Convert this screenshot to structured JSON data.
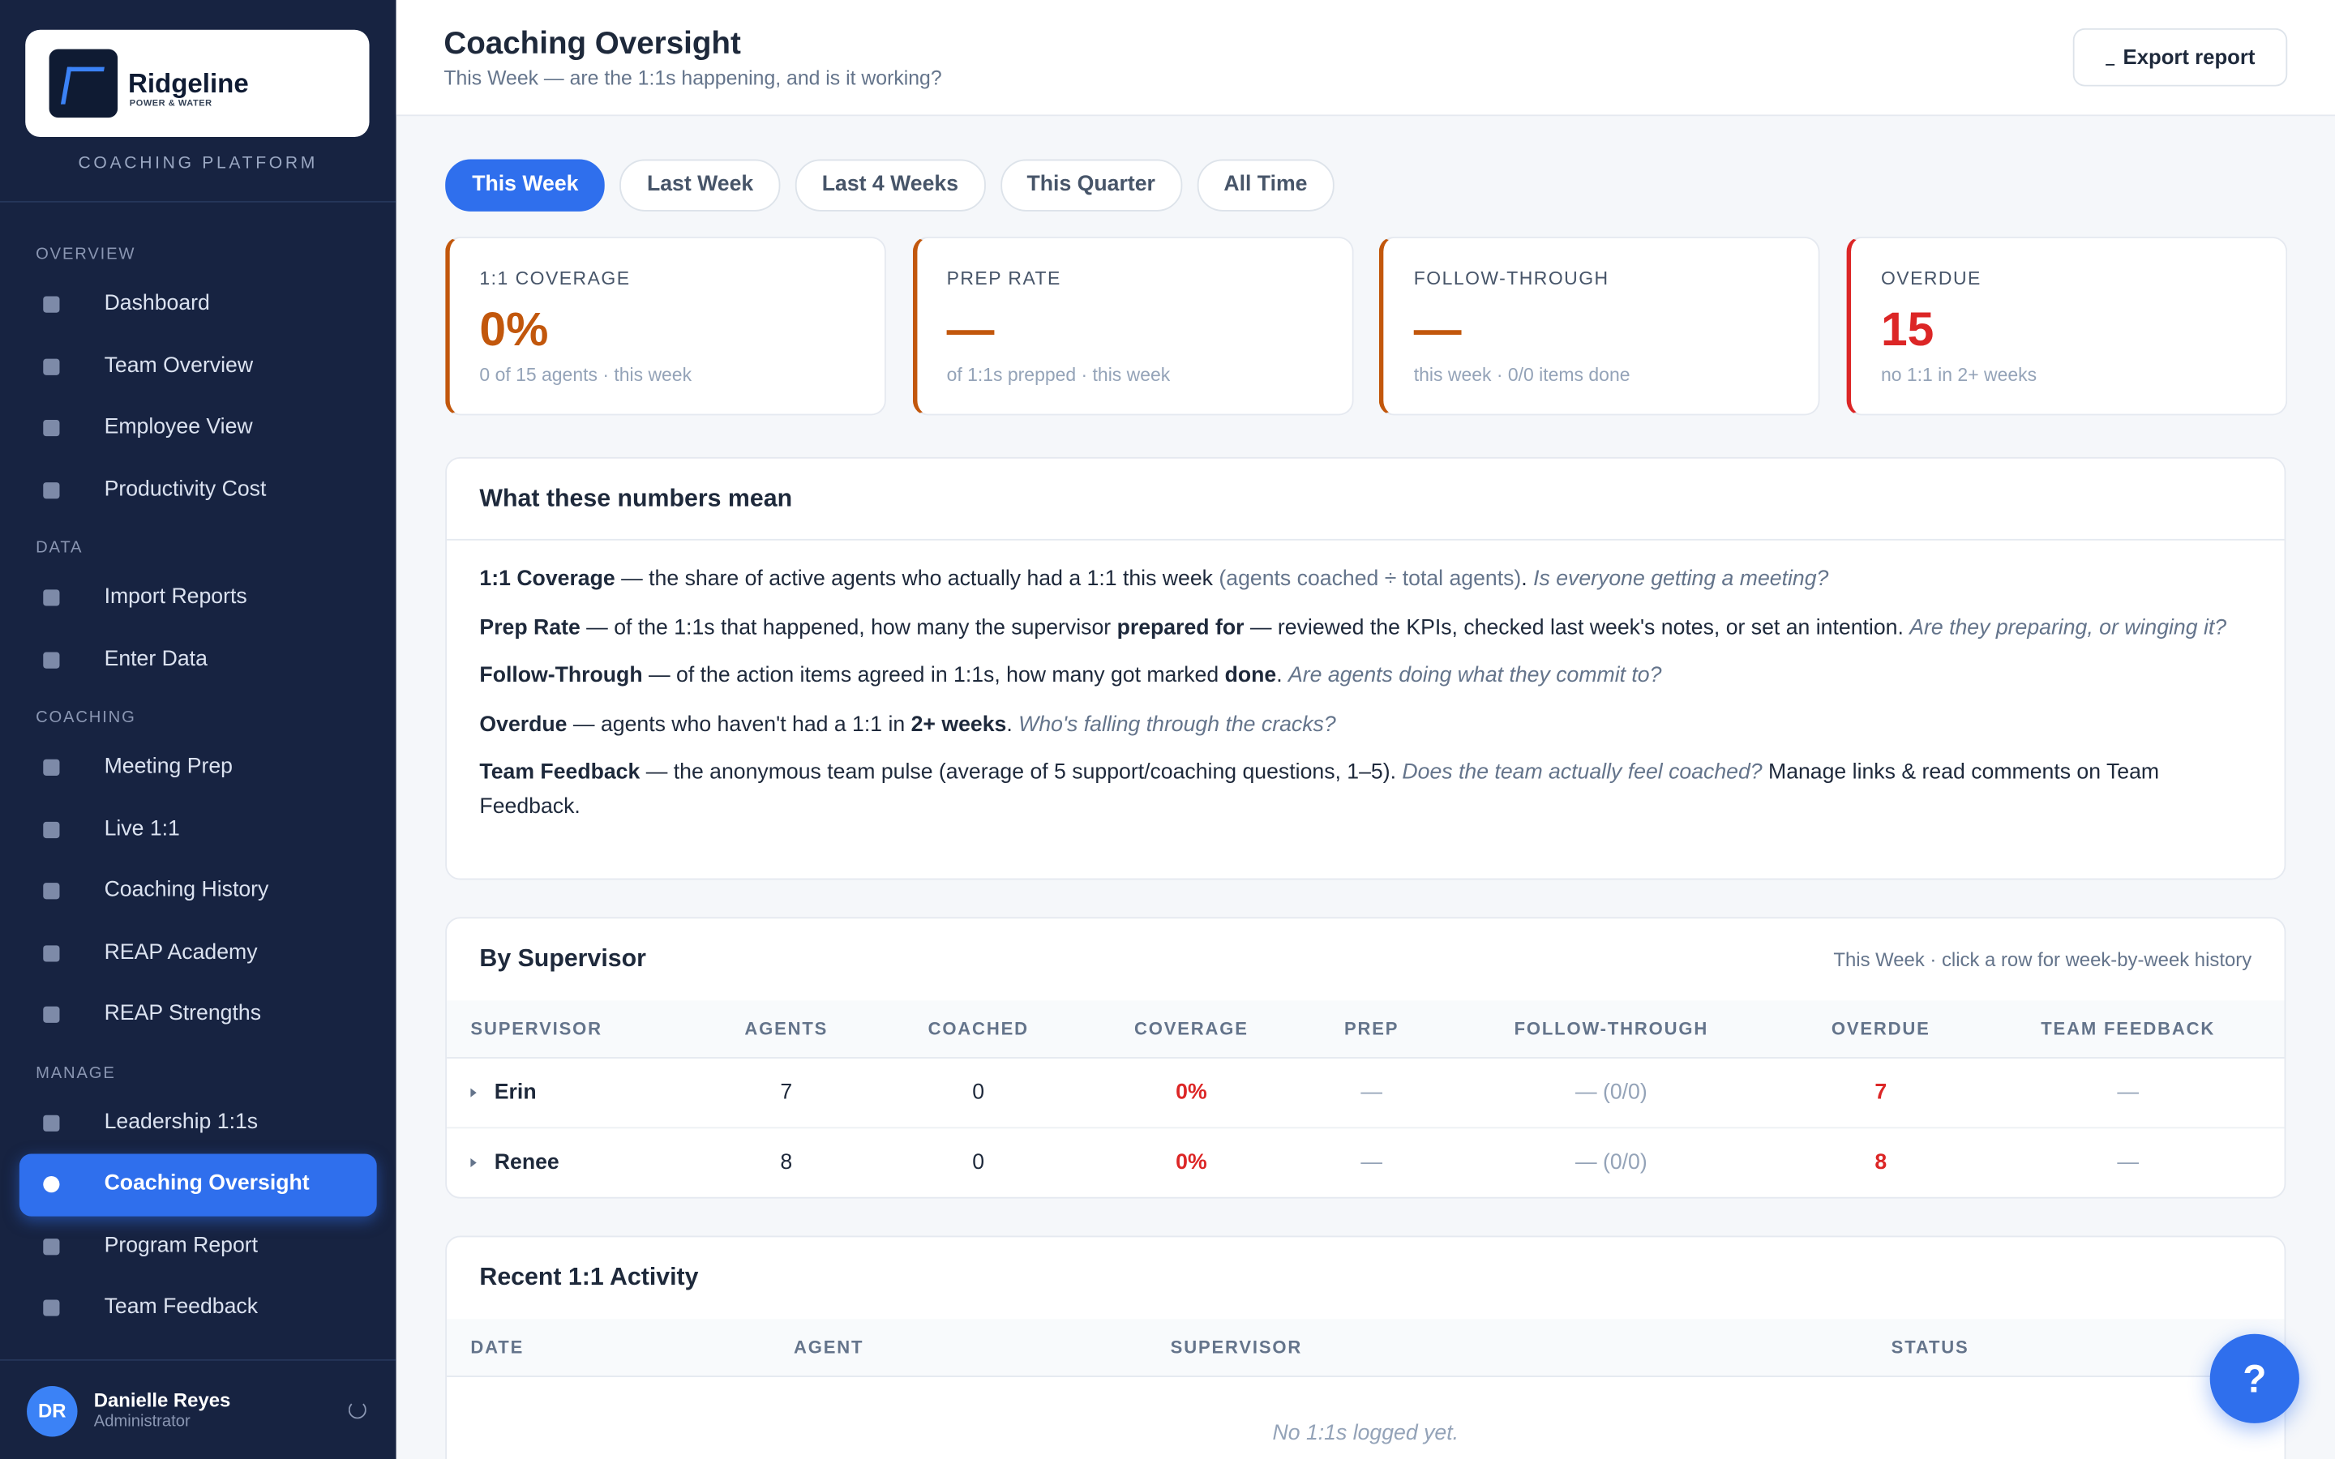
{
  "brand": {
    "name": "Ridgeline",
    "tagline": "POWER & WATER",
    "platform": "COACHING PLATFORM"
  },
  "nav": [
    {
      "title": "OVERVIEW",
      "items": [
        "Dashboard",
        "Team Overview",
        "Employee View",
        "Productivity Cost"
      ]
    },
    {
      "title": "DATA",
      "items": [
        "Import Reports",
        "Enter Data"
      ]
    },
    {
      "title": "COACHING",
      "items": [
        "Meeting Prep",
        "Live 1:1",
        "Coaching History",
        "REAP Academy",
        "REAP Strengths"
      ]
    },
    {
      "title": "MANAGE",
      "items": [
        "Leadership 1:1s",
        "Coaching Oversight",
        "Program Report",
        "Team Feedback"
      ]
    }
  ],
  "active_nav": "Coaching Oversight",
  "user": {
    "initials": "DR",
    "name": "Danielle Reyes",
    "role": "Administrator"
  },
  "header": {
    "title": "Coaching Oversight",
    "subtitle": "This Week — are the 1:1s happening, and is it working?",
    "export": "Export report"
  },
  "tabs": [
    "This Week",
    "Last Week",
    "Last 4 Weeks",
    "This Quarter",
    "All Time"
  ],
  "active_tab": 0,
  "kpis": [
    {
      "label": "1:1 COVERAGE",
      "value": "0%",
      "note": "0 of 15 agents · this week",
      "color": "#c2570c"
    },
    {
      "label": "PREP RATE",
      "value": "—",
      "note": "of 1:1s prepped · this week",
      "color": "#c2570c"
    },
    {
      "label": "FOLLOW-THROUGH",
      "value": "—",
      "note": "this week · 0/0 items done",
      "color": "#c2570c"
    },
    {
      "label": "OVERDUE",
      "value": "15",
      "note": "no 1:1 in 2+ weeks",
      "color": "#dc2626"
    }
  ],
  "explainer": {
    "title": "What these numbers mean",
    "items": [
      [
        {
          "text": "1:1 Coverage",
          "style": "b"
        },
        {
          "text": " — the share of active agents who actually had a 1:1 this week "
        },
        {
          "text": "(agents coached ÷ total agents)",
          "style": "m"
        },
        {
          "text": ". "
        },
        {
          "text": "Is everyone getting a meeting?",
          "style": "i"
        }
      ],
      [
        {
          "text": "Prep Rate",
          "style": "b"
        },
        {
          "text": " — of the 1:1s that happened, how many the supervisor "
        },
        {
          "text": "prepared for",
          "style": "b"
        },
        {
          "text": " — reviewed the KPIs, checked last week's notes, or set an intention. "
        },
        {
          "text": "Are they preparing, or winging it?",
          "style": "i"
        }
      ],
      [
        {
          "text": "Follow-Through",
          "style": "b"
        },
        {
          "text": " — of the action items agreed in 1:1s, how many got marked "
        },
        {
          "text": "done",
          "style": "b"
        },
        {
          "text": ". "
        },
        {
          "text": "Are agents doing what they commit to?",
          "style": "i"
        }
      ],
      [
        {
          "text": "Overdue",
          "style": "b"
        },
        {
          "text": " — agents who haven't had a 1:1 in "
        },
        {
          "text": "2+ weeks",
          "style": "b"
        },
        {
          "text": ". "
        },
        {
          "text": "Who's falling through the cracks?",
          "style": "i"
        }
      ],
      [
        {
          "text": "Team Feedback",
          "style": "b"
        },
        {
          "text": " — the anonymous team pulse (average of 5 support/coaching questions, 1–5). "
        },
        {
          "text": "Does the team actually feel coached?",
          "style": "i"
        },
        {
          "text": " Manage links & read comments on Team Feedback."
        }
      ]
    ]
  },
  "supervisors": {
    "title": "By Supervisor",
    "note": "This Week · click a row for week-by-week history",
    "columns": [
      "SUPERVISOR",
      "AGENTS",
      "COACHED",
      "COVERAGE",
      "PREP",
      "FOLLOW-THROUGH",
      "OVERDUE",
      "TEAM FEEDBACK"
    ],
    "rows": [
      [
        "Erin",
        7,
        0,
        "0%",
        "—",
        "— (0/0)",
        7,
        "—"
      ],
      [
        "Renee",
        8,
        0,
        "0%",
        "—",
        "— (0/0)",
        8,
        "—"
      ]
    ]
  },
  "recent": {
    "title": "Recent 1:1 Activity",
    "columns": [
      "DATE",
      "AGENT",
      "SUPERVISOR",
      "STATUS"
    ],
    "empty": "No 1:1s logged yet."
  },
  "help": "?"
}
